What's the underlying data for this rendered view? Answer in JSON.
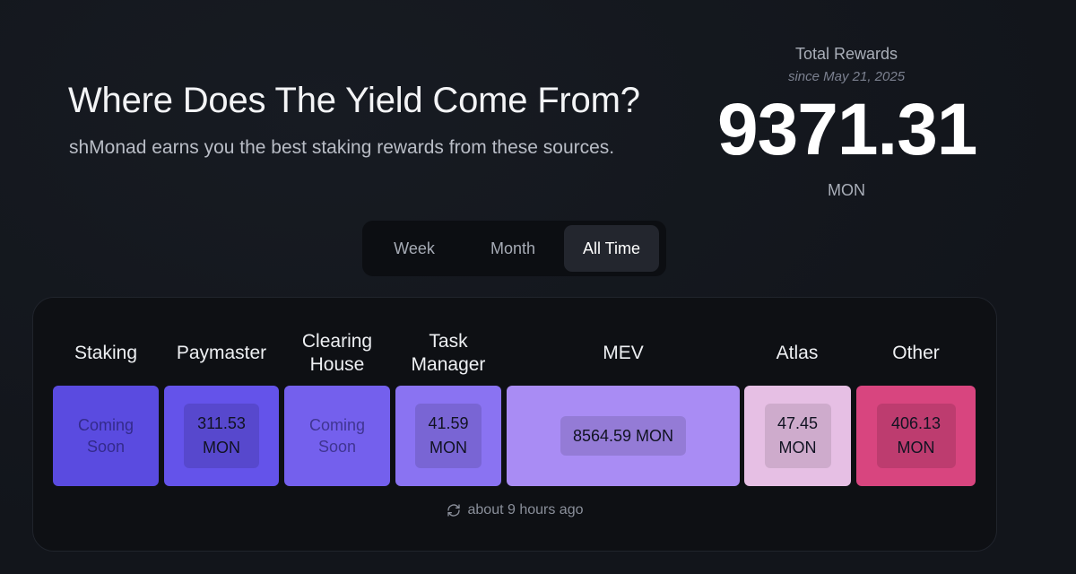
{
  "hero": {
    "title": "Where Does The Yield Come From?",
    "subtitle": "shMonad earns you the best staking rewards from these sources."
  },
  "totals": {
    "label": "Total Rewards",
    "since": "since May 21, 2025",
    "value": "9371.31",
    "unit": "MON"
  },
  "tabs": [
    {
      "label": "Week",
      "active": false
    },
    {
      "label": "Month",
      "active": false
    },
    {
      "label": "All Time",
      "active": true
    }
  ],
  "sources": [
    {
      "name": "Staking",
      "status": "Coming Soon",
      "amount": null,
      "unit": null,
      "color": "#5a4be0"
    },
    {
      "name": "Paymaster",
      "amount": "311.53",
      "unit": "MON",
      "color": "#6453ea"
    },
    {
      "name": "Clearing House",
      "status": "Coming Soon",
      "amount": null,
      "unit": null,
      "color": "#7460ed"
    },
    {
      "name": "Task Manager",
      "amount": "41.59",
      "unit": "MON",
      "color": "#8a73f2"
    },
    {
      "name": "MEV",
      "amount": "8564.59",
      "unit": "MON",
      "color": "#a98cf4"
    },
    {
      "name": "Atlas",
      "amount": "47.45",
      "unit": "MON",
      "color": "#e6bfe4"
    },
    {
      "name": "Other",
      "amount": "406.13",
      "unit": "MON",
      "color": "#d8457f"
    }
  ],
  "source_labels": {
    "staking": "Staking",
    "paymaster": "Paymaster",
    "clearing_line1": "Clearing",
    "clearing_line2": "House",
    "task_line1": "Task",
    "task_line2": "Manager",
    "mev": "MEV",
    "atlas": "Atlas",
    "other": "Other"
  },
  "tiles": {
    "staking": {
      "line1": "Coming",
      "line2": "Soon"
    },
    "paymaster": {
      "line1": "311.53",
      "line2": "MON"
    },
    "clearing": {
      "line1": "Coming",
      "line2": "Soon"
    },
    "task": {
      "line1": "41.59",
      "line2": "MON"
    },
    "mev": {
      "line1": "8564.59 MON"
    },
    "atlas": {
      "line1": "47.45",
      "line2": "MON"
    },
    "other": {
      "line1": "406.13",
      "line2": "MON"
    }
  },
  "updated": {
    "text": "about 9 hours ago",
    "icon": "refresh-icon"
  }
}
